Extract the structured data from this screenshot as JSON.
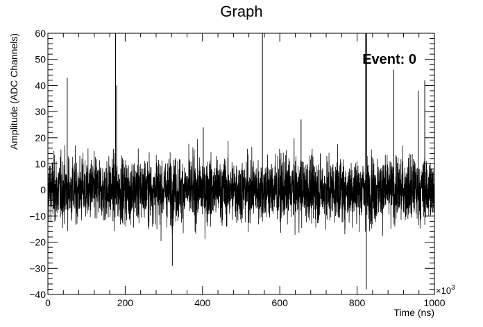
{
  "chart_data": {
    "type": "line",
    "title": "Graph",
    "xlabel": "Time (ns)",
    "ylabel": "Amplitude (ADC Channels)",
    "x_exponent_label": "×10",
    "x_exponent_power": "3",
    "annotation": "Event: 0",
    "xlim": [
      0,
      1000
    ],
    "ylim": [
      -40,
      60
    ],
    "x_ticks": [
      0,
      200,
      400,
      600,
      800,
      1000
    ],
    "y_ticks": [
      -40,
      -30,
      -20,
      -10,
      0,
      10,
      20,
      30,
      40,
      50,
      60
    ],
    "x_tick_labels": [
      "0",
      "200",
      "400",
      "600",
      "800",
      "1000"
    ],
    "y_tick_labels": [
      "−40",
      "−30",
      "−20",
      "−10",
      "0",
      "10",
      "20",
      "30",
      "40",
      "50",
      "60"
    ],
    "noise": {
      "baseline": 0,
      "typical_amplitude": 12,
      "extreme_range": [
        -30,
        25
      ]
    },
    "spikes": [
      {
        "x": 50,
        "y": 43
      },
      {
        "x": 175,
        "y": 60
      },
      {
        "x": 178,
        "y": 40
      },
      {
        "x": 322,
        "y": -29
      },
      {
        "x": 402,
        "y": 24
      },
      {
        "x": 555,
        "y": 60
      },
      {
        "x": 655,
        "y": 27
      },
      {
        "x": 822,
        "y": 60
      },
      {
        "x": 824,
        "y": -38
      },
      {
        "x": 825,
        "y": 60
      },
      {
        "x": 895,
        "y": 46
      },
      {
        "x": 958,
        "y": 38
      },
      {
        "x": 975,
        "y": 42
      }
    ],
    "grid": false,
    "line_color": "#000000"
  }
}
